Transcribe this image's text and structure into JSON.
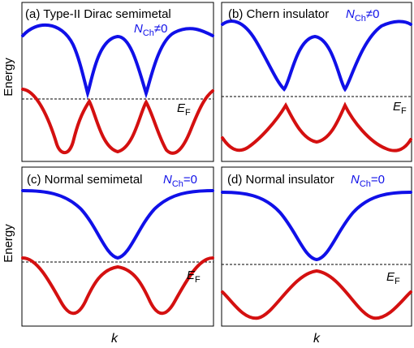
{
  "axes": {
    "ylabel": "Energy",
    "xlabel": "k"
  },
  "colors": {
    "conduction": "#1010e8",
    "valence": "#d41010",
    "frame": "#000000",
    "fermi": "#000000"
  },
  "fermi_label": {
    "main": "E",
    "sub": "F"
  },
  "panels": [
    {
      "title": "(a) Type-II Dirac semimetal",
      "nch": {
        "letter": "N",
        "sub": "Ch",
        "rel": "≠",
        "value": "0"
      }
    },
    {
      "title": "(b) Chern insulator",
      "nch": {
        "letter": "N",
        "sub": "Ch",
        "rel": "≠",
        "value": "0"
      }
    },
    {
      "title": "(c) Normal semimetal",
      "nch": {
        "letter": "N",
        "sub": "Ch",
        "rel": "=",
        "value": "0"
      }
    },
    {
      "title": "(d) Normal insulator",
      "nch": {
        "letter": "N",
        "sub": "Ch",
        "rel": "=",
        "value": "0"
      }
    }
  ]
}
